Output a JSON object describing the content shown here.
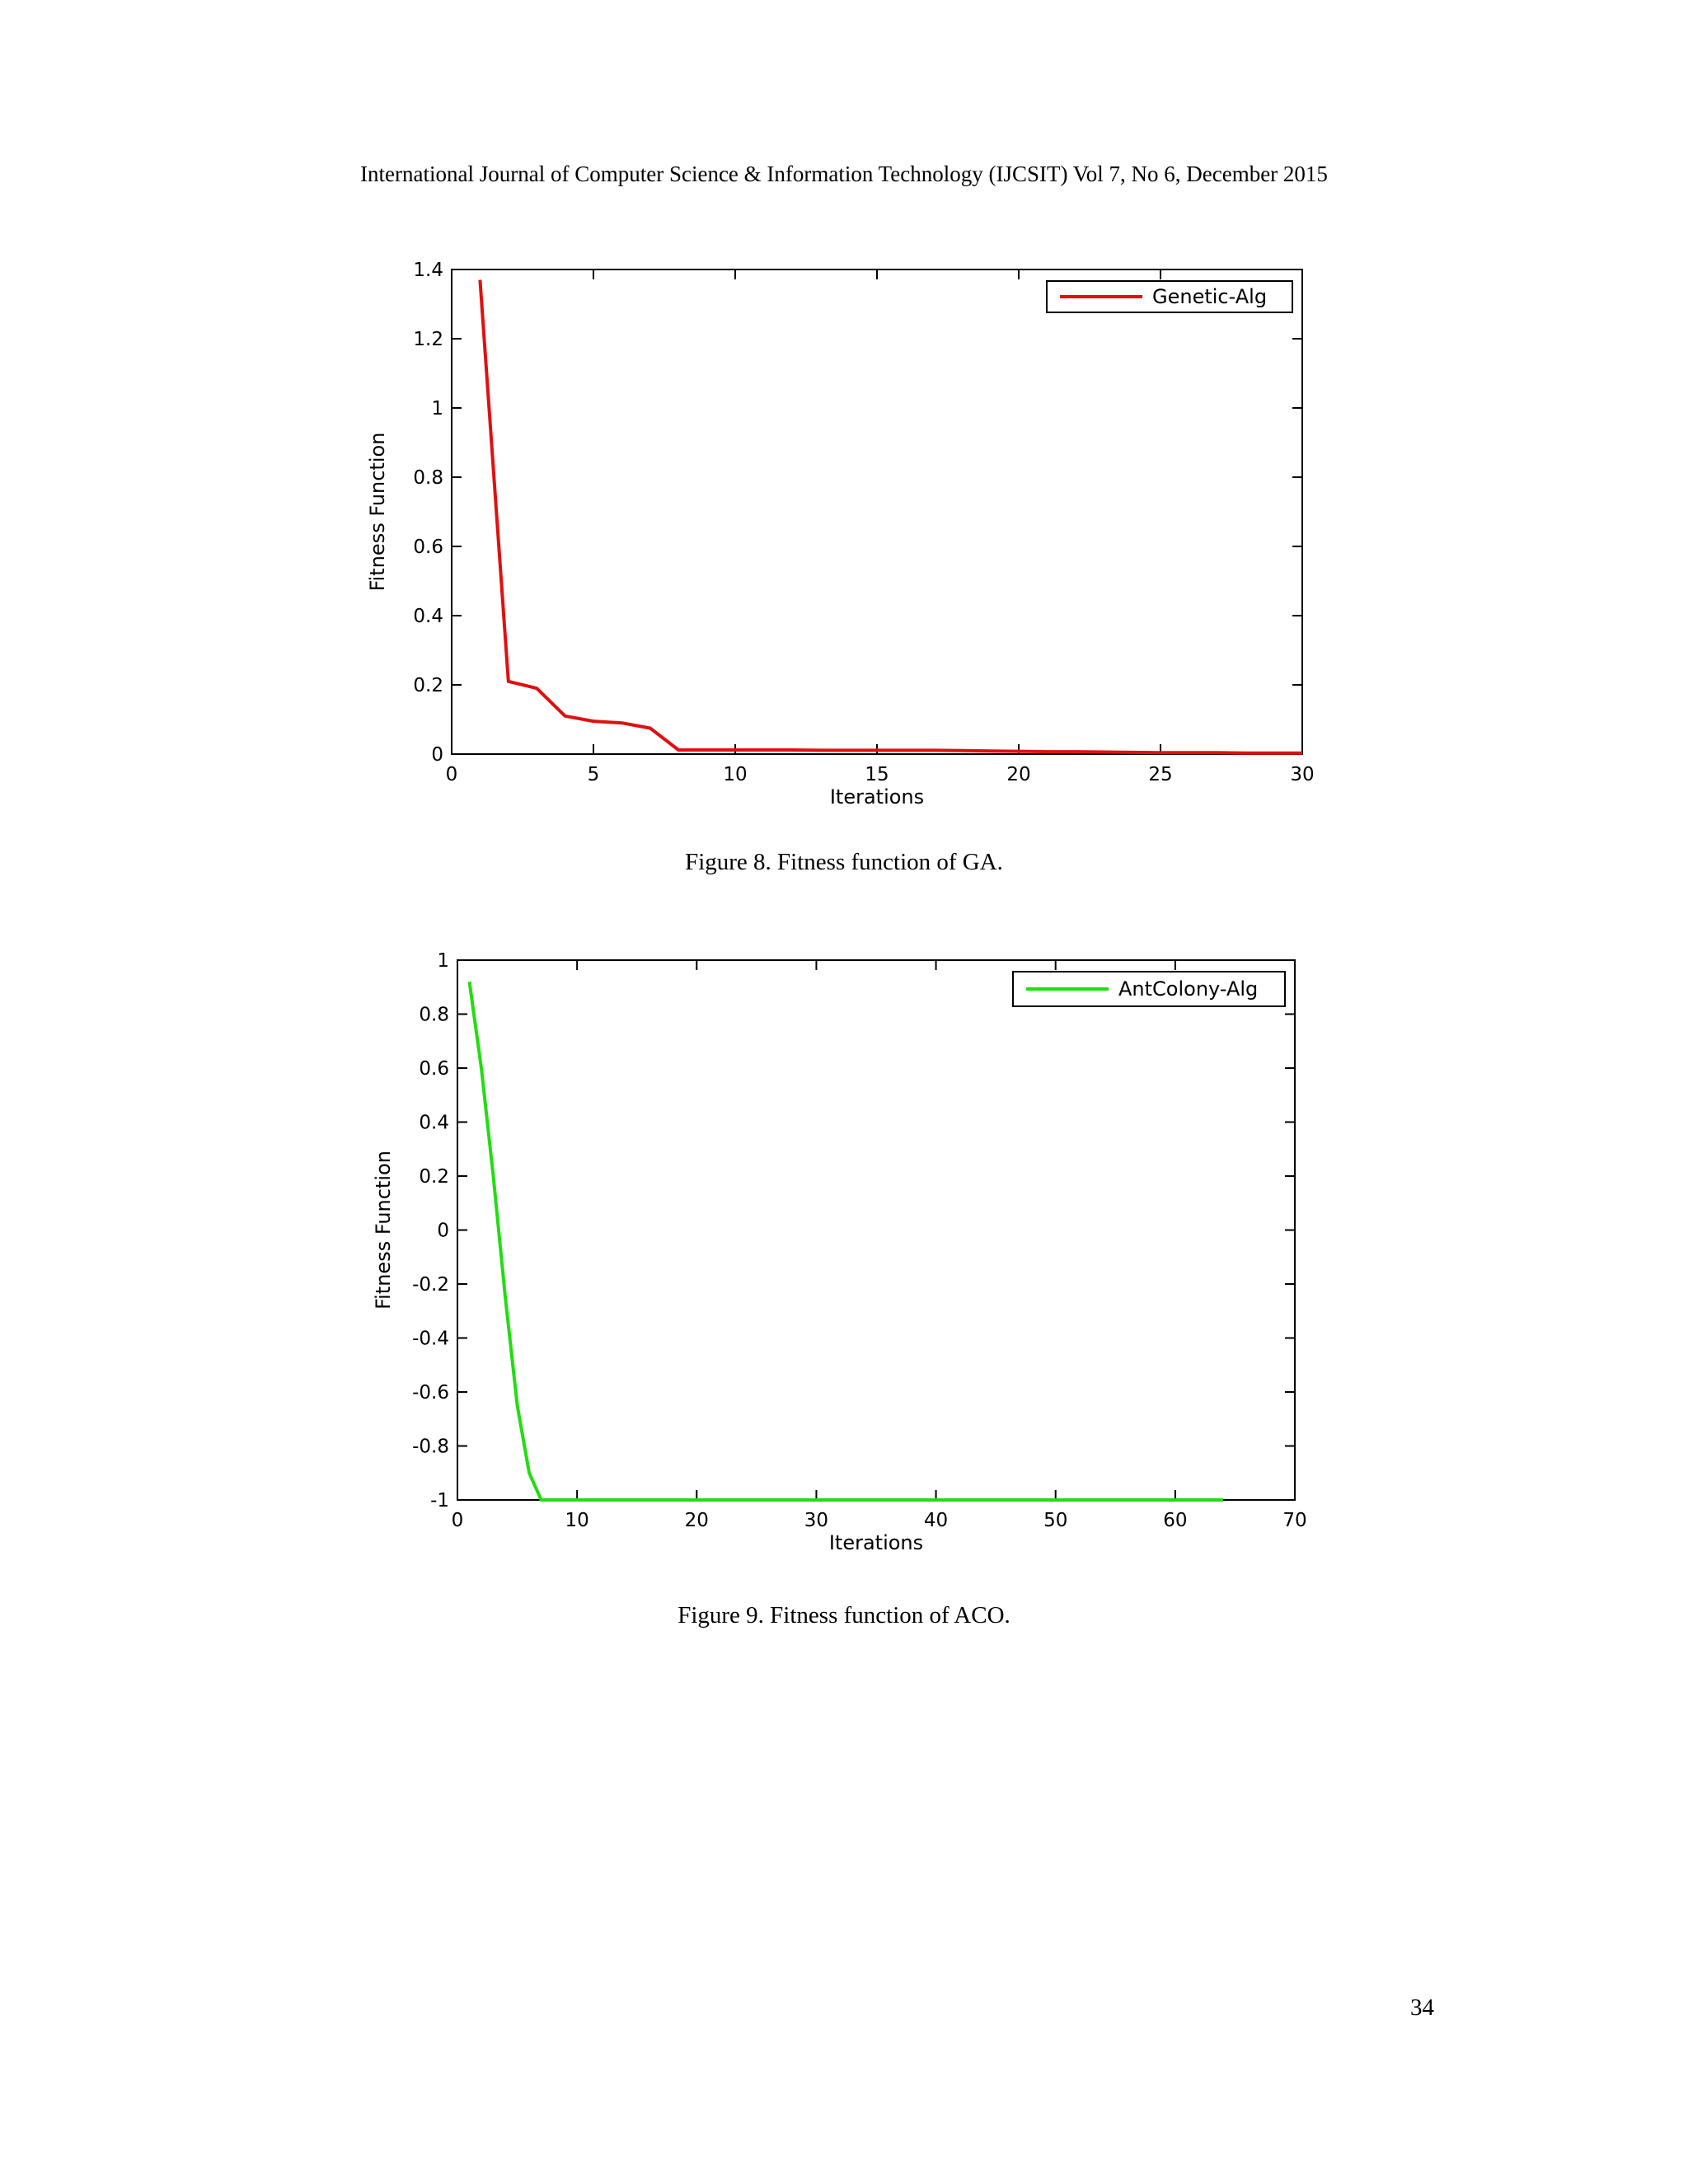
{
  "header": "International Journal of Computer Science & Information Technology (IJCSIT) Vol 7, No 6, December 2015",
  "figure8_caption": "Figure 8. Fitness function of GA.",
  "figure9_caption": "Figure 9. Fitness function of ACO.",
  "page_number": "34",
  "chart_data": [
    {
      "type": "line",
      "xlabel": "Iterations",
      "ylabel": "Fitness Function",
      "xlim": [
        0,
        30
      ],
      "ylim": [
        0,
        1.4
      ],
      "xticks": [
        0,
        5,
        10,
        15,
        20,
        25,
        30
      ],
      "xtick_labels": [
        "0",
        "5",
        "10",
        "15",
        "20",
        "25",
        "30"
      ],
      "yticks": [
        0,
        0.2,
        0.4,
        0.6,
        0.8,
        1,
        1.2,
        1.4
      ],
      "ytick_labels": [
        "0",
        "0.2",
        "0.4",
        "0.6",
        "0.8",
        "1",
        "1.2",
        "1.4"
      ],
      "legend": "top-right",
      "grid": false,
      "series": [
        {
          "name": "Genetic-Alg",
          "color": "#e01010",
          "x": [
            1,
            2,
            3,
            4,
            5,
            6,
            7,
            8,
            9,
            10,
            11,
            12,
            13,
            14,
            15,
            16,
            17,
            18,
            19,
            20,
            21,
            22,
            23,
            24,
            25,
            26,
            27,
            28,
            29,
            30
          ],
          "y": [
            1.37,
            0.21,
            0.19,
            0.11,
            0.095,
            0.09,
            0.075,
            0.012,
            0.012,
            0.012,
            0.012,
            0.012,
            0.011,
            0.011,
            0.011,
            0.011,
            0.011,
            0.01,
            0.009,
            0.008,
            0.007,
            0.007,
            0.006,
            0.005,
            0.004,
            0.004,
            0.004,
            0.003,
            0.003,
            0.003
          ]
        }
      ]
    },
    {
      "type": "line",
      "xlabel": "Iterations",
      "ylabel": "Fitness Function",
      "xlim": [
        0,
        70
      ],
      "ylim": [
        -1,
        1
      ],
      "xticks": [
        0,
        10,
        20,
        30,
        40,
        50,
        60,
        70
      ],
      "xtick_labels": [
        "0",
        "10",
        "20",
        "30",
        "40",
        "50",
        "60",
        "70"
      ],
      "yticks": [
        -1,
        -0.8,
        -0.6,
        -0.4,
        -0.2,
        0,
        0.2,
        0.4,
        0.6,
        0.8,
        1
      ],
      "ytick_labels": [
        "-1",
        "-0.8",
        "-0.6",
        "-0.4",
        "-0.2",
        "0",
        "0.2",
        "0.4",
        "0.6",
        "0.8",
        "1"
      ],
      "legend": "top-right",
      "grid": false,
      "series": [
        {
          "name": "AntColony-Alg",
          "color": "#22dd11",
          "x": [
            1,
            2,
            3,
            4,
            5,
            6,
            7,
            10,
            20,
            30,
            40,
            50,
            60,
            64
          ],
          "y": [
            0.92,
            0.6,
            0.2,
            -0.25,
            -0.65,
            -0.9,
            -1,
            -1,
            -1,
            -1,
            -1,
            -1,
            -1,
            -1
          ]
        }
      ]
    }
  ]
}
